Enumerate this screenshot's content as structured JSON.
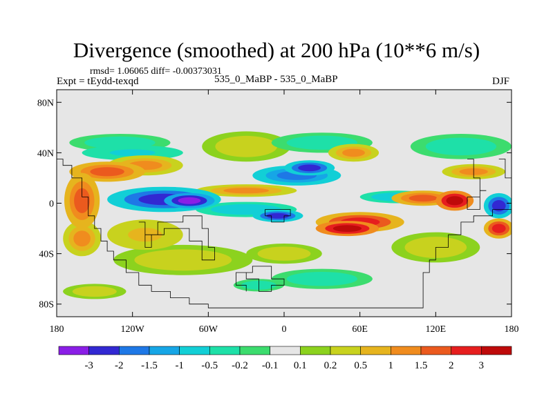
{
  "header": {
    "title": "Divergence (smoothed) at 200 hPa (10**6 m/s)",
    "stats": "rmsd= 1.06065 diff= -0.00373031",
    "expt": "Expt = tEydd-texqd",
    "center": "535_0_MaBP - 535_0_MaBP",
    "season": "DJF"
  },
  "chart_data": {
    "type": "heatmap",
    "title": "Divergence (smoothed) at 200 hPa (10**6 m/s)",
    "xlabel": "",
    "ylabel": "",
    "x_range": [
      -180,
      180
    ],
    "y_range": [
      -90,
      90
    ],
    "x_ticks": [
      {
        "value": -180,
        "label": "180"
      },
      {
        "value": -120,
        "label": "120W"
      },
      {
        "value": -60,
        "label": "60W"
      },
      {
        "value": 0,
        "label": "0"
      },
      {
        "value": 60,
        "label": "60E"
      },
      {
        "value": 120,
        "label": "120E"
      },
      {
        "value": 180,
        "label": "180"
      }
    ],
    "y_ticks": [
      {
        "value": 80,
        "label": "80N"
      },
      {
        "value": 40,
        "label": "40N"
      },
      {
        "value": 0,
        "label": "0"
      },
      {
        "value": -40,
        "label": "40S"
      },
      {
        "value": -80,
        "label": "80S"
      }
    ],
    "levels": [
      "-3",
      "-2",
      "-1.5",
      "-1",
      "-0.5",
      "-0.2",
      "-0.1",
      "0.1",
      "0.2",
      "0.5",
      "1",
      "1.5",
      "2",
      "3"
    ],
    "colors": [
      "#8a1ee6",
      "#3228d2",
      "#1e78e6",
      "#16a6e6",
      "#12cfd6",
      "#1ee0a8",
      "#3cdc6e",
      "#e6e6e6",
      "#8cd21e",
      "#c8d21e",
      "#e6b41e",
      "#f08c1e",
      "#eb5a1e",
      "#e61e1e",
      "#be0a0a"
    ],
    "features": [
      {
        "lon": -160,
        "lat": 2,
        "rx": 14,
        "ry": 22,
        "value": 1.8
      },
      {
        "lon": -140,
        "lat": 25,
        "rx": 30,
        "ry": 8,
        "value": 1.6
      },
      {
        "lon": -110,
        "lat": 30,
        "rx": 30,
        "ry": 8,
        "value": 1.4
      },
      {
        "lon": -120,
        "lat": 40,
        "rx": 40,
        "ry": 6,
        "value": -0.6
      },
      {
        "lon": -130,
        "lat": 48,
        "rx": 40,
        "ry": 7,
        "value": -0.3
      },
      {
        "lon": -95,
        "lat": 3,
        "rx": 45,
        "ry": 10,
        "value": -2.7
      },
      {
        "lon": -75,
        "lat": 2,
        "rx": 20,
        "ry": 6,
        "value": -3.2
      },
      {
        "lon": -160,
        "lat": -28,
        "rx": 15,
        "ry": 14,
        "value": 1.3
      },
      {
        "lon": -110,
        "lat": -25,
        "rx": 30,
        "ry": 12,
        "value": 0.6
      },
      {
        "lon": -80,
        "lat": -45,
        "rx": 55,
        "ry": 12,
        "value": 0.3
      },
      {
        "lon": -30,
        "lat": -5,
        "rx": 40,
        "ry": 6,
        "value": -0.8
      },
      {
        "lon": -5,
        "lat": -10,
        "rx": 20,
        "ry": 5,
        "value": -2.4
      },
      {
        "lon": -30,
        "lat": 10,
        "rx": 40,
        "ry": 5,
        "value": 1.2
      },
      {
        "lon": -30,
        "lat": 45,
        "rx": 35,
        "ry": 12,
        "value": 0.3
      },
      {
        "lon": 10,
        "lat": 22,
        "rx": 35,
        "ry": 8,
        "value": -1.8
      },
      {
        "lon": 20,
        "lat": 28,
        "rx": 20,
        "ry": 6,
        "value": -2.3
      },
      {
        "lon": 55,
        "lat": 40,
        "rx": 20,
        "ry": 7,
        "value": 1.4
      },
      {
        "lon": 30,
        "lat": 48,
        "rx": 40,
        "ry": 8,
        "value": -0.3
      },
      {
        "lon": 60,
        "lat": -15,
        "rx": 35,
        "ry": 8,
        "value": 2.4
      },
      {
        "lon": 50,
        "lat": -20,
        "rx": 25,
        "ry": 6,
        "value": 3.1
      },
      {
        "lon": 110,
        "lat": 4,
        "rx": 25,
        "ry": 6,
        "value": 1.6
      },
      {
        "lon": 135,
        "lat": 2,
        "rx": 15,
        "ry": 8,
        "value": 3.0
      },
      {
        "lon": 90,
        "lat": 5,
        "rx": 30,
        "ry": 5,
        "value": -1.0
      },
      {
        "lon": 170,
        "lat": -2,
        "rx": 12,
        "ry": 10,
        "value": -2.6
      },
      {
        "lon": 170,
        "lat": -20,
        "rx": 12,
        "ry": 8,
        "value": 2.2
      },
      {
        "lon": 140,
        "lat": 45,
        "rx": 40,
        "ry": 10,
        "value": -0.4
      },
      {
        "lon": 150,
        "lat": 25,
        "rx": 25,
        "ry": 6,
        "value": 1.0
      },
      {
        "lon": 120,
        "lat": -35,
        "rx": 35,
        "ry": 12,
        "value": 0.4
      },
      {
        "lon": 30,
        "lat": -60,
        "rx": 40,
        "ry": 8,
        "value": -0.5
      },
      {
        "lon": -20,
        "lat": -65,
        "rx": 20,
        "ry": 5,
        "value": -0.3
      },
      {
        "lon": 0,
        "lat": -40,
        "rx": 30,
        "ry": 8,
        "value": 0.4
      },
      {
        "lon": -150,
        "lat": -70,
        "rx": 25,
        "ry": 6,
        "value": 0.3
      }
    ]
  }
}
